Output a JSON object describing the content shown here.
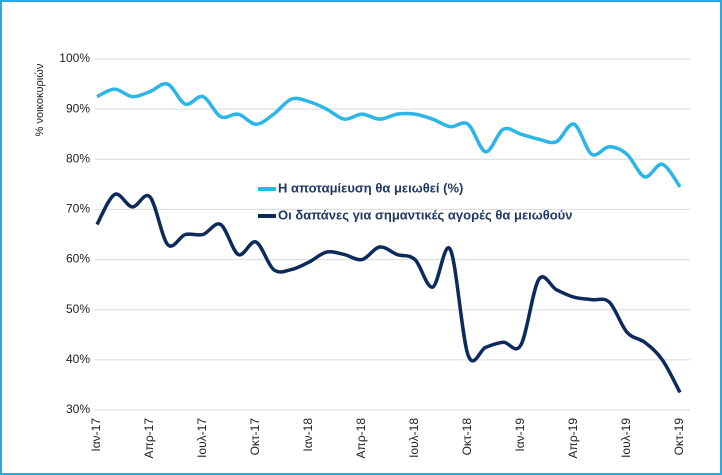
{
  "chart_data": {
    "type": "line",
    "y_axis_label": "% νοικοκυριών",
    "categories": [
      "Ιαν-17",
      null,
      null,
      "Απρ-17",
      null,
      null,
      "Ιουλ-17",
      null,
      null,
      "Οκτ-17",
      null,
      null,
      "Ιαν-18",
      null,
      null,
      "Απρ-18",
      null,
      null,
      "Ιουλ-18",
      null,
      null,
      "Οκτ-18",
      null,
      null,
      "Ιαν-19",
      null,
      null,
      "Απρ-19",
      null,
      null,
      "Ιουλ-19",
      null,
      null,
      "Οκτ-19"
    ],
    "series": [
      {
        "name": "Η αποταμίευση θα μειωθεί (%)",
        "color": "#2bb5e8",
        "values": [
          92.5,
          94,
          92.5,
          93.5,
          95,
          91,
          92.5,
          88.5,
          89,
          87,
          89,
          92,
          91.5,
          90,
          88,
          89,
          88,
          89,
          89,
          88,
          86.5,
          87,
          81.5,
          86,
          85,
          84,
          83.5,
          87,
          81,
          82.5,
          81,
          76.5,
          79,
          74.5
        ]
      },
      {
        "name": "Οι δαπάνες για σημαντικές αγορές θα μειωθούν",
        "color": "#0d2a5c",
        "values": [
          67,
          73,
          70.5,
          72.5,
          63,
          65,
          65,
          67,
          61,
          63.5,
          58,
          58,
          59.5,
          61.5,
          61,
          60,
          62.5,
          61,
          60,
          54.5,
          62,
          41,
          42.5,
          43.5,
          43,
          56,
          54,
          52.5,
          52,
          51.5,
          45.5,
          43.5,
          40,
          33.5
        ]
      }
    ],
    "ylim": [
      30,
      100
    ],
    "yticks": [
      {
        "value": 30,
        "label": "30%"
      },
      {
        "value": 40,
        "label": "40%"
      },
      {
        "value": 50,
        "label": "50%"
      },
      {
        "value": 60,
        "label": "60%"
      },
      {
        "value": 70,
        "label": "70%"
      },
      {
        "value": 80,
        "label": "80%"
      },
      {
        "value": 90,
        "label": "90%"
      },
      {
        "value": 100,
        "label": "100%"
      }
    ],
    "grid": true
  }
}
